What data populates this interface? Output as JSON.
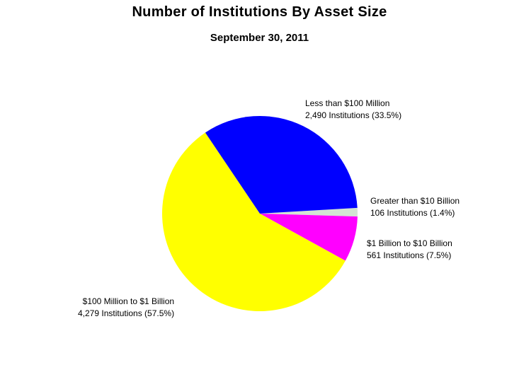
{
  "chart_data": {
    "type": "pie",
    "title": "Number of Institutions By Asset Size",
    "subtitle": "September 30, 2011",
    "slices": [
      {
        "category": "Less than $100 Million",
        "count": 2490,
        "percent": 33.5,
        "label": "2,490 Institutions (33.5%)",
        "color": "#0000ff"
      },
      {
        "category": "Greater than $10 Billion",
        "count": 106,
        "percent": 1.4,
        "label": "106 Institutions (1.4%)",
        "color": "#d3e4d3"
      },
      {
        "category": "$1 Billion to $10 Billion",
        "count": 561,
        "percent": 7.5,
        "label": "561 Institutions (7.5%)",
        "color": "#ff00ff"
      },
      {
        "category": "$100 Million to $1 Billion",
        "count": 4279,
        "percent": 57.5,
        "label": "4,279 Institutions (57.5%)",
        "color": "#ffff00"
      }
    ]
  }
}
